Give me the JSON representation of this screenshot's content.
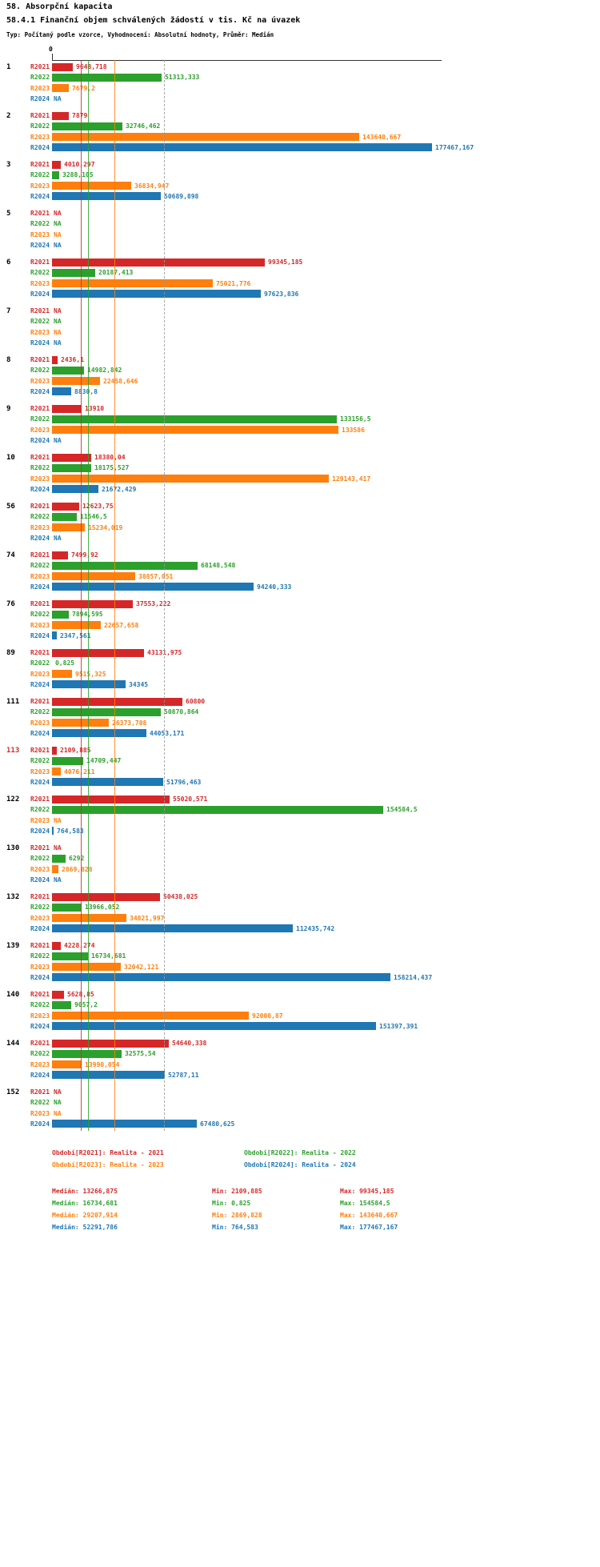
{
  "title": "58. Absorpční kapacita",
  "subtitle": "58.4.1 Finanční objem schválených žádostí v tis. Kč na úvazek",
  "meta_line": "Typ: Počítaný podle vzorce, Vyhodnocení: Absolutní hodnoty, Průměr: Medián",
  "axis": {
    "zero_label": "0",
    "axis_min": 0
  },
  "chart_data": {
    "type": "bar",
    "orientation": "horizontal",
    "title": "58.4.1 Finanční objem schválených žádostí v tis. Kč na úvazek",
    "axis_max": 177467.167,
    "series": [
      "R2021",
      "R2022",
      "R2023",
      "R2024"
    ],
    "colors": {
      "R2021": "#d62728",
      "R2022": "#2ca02c",
      "R2023": "#ff7f0e",
      "R2024": "#1f77b4"
    },
    "median_lines": {
      "R2021": 13266.875,
      "R2022": 16734.681,
      "R2023": 29207.914,
      "R2024": 52291.786
    },
    "na_label": "NA",
    "groups": [
      {
        "id": "1",
        "highlight": false,
        "values": {
          "R2021": "9648,718",
          "R2022": "51313,333",
          "R2023": "7679,2",
          "R2024": "NA"
        }
      },
      {
        "id": "2",
        "highlight": false,
        "values": {
          "R2021": "7879",
          "R2022": "32746,462",
          "R2023": "143640,667",
          "R2024": "177467,167"
        }
      },
      {
        "id": "3",
        "highlight": false,
        "values": {
          "R2021": "4010,297",
          "R2022": "3288,105",
          "R2023": "36834,947",
          "R2024": "50689,898"
        }
      },
      {
        "id": "5",
        "highlight": false,
        "values": {
          "R2021": "NA",
          "R2022": "NA",
          "R2023": "NA",
          "R2024": "NA"
        }
      },
      {
        "id": "6",
        "highlight": false,
        "values": {
          "R2021": "99345,185",
          "R2022": "20187,413",
          "R2023": "75021,776",
          "R2024": "97623,836"
        }
      },
      {
        "id": "7",
        "highlight": false,
        "values": {
          "R2021": "NA",
          "R2022": "NA",
          "R2023": "NA",
          "R2024": "NA"
        }
      },
      {
        "id": "8",
        "highlight": false,
        "values": {
          "R2021": "2436,1",
          "R2022": "14982,842",
          "R2023": "22458,646",
          "R2024": "8830,8"
        }
      },
      {
        "id": "9",
        "highlight": false,
        "values": {
          "R2021": "13910",
          "R2022": "133156,5",
          "R2023": "133586",
          "R2024": "NA"
        }
      },
      {
        "id": "10",
        "highlight": false,
        "values": {
          "R2021": "18380,04",
          "R2022": "18175,527",
          "R2023": "129143,417",
          "R2024": "21672,429"
        }
      },
      {
        "id": "56",
        "highlight": false,
        "values": {
          "R2021": "12623,75",
          "R2022": "11546,5",
          "R2023": "15234,019",
          "R2024": "NA"
        }
      },
      {
        "id": "74",
        "highlight": false,
        "values": {
          "R2021": "7499,92",
          "R2022": "68148,548",
          "R2023": "38857,051",
          "R2024": "94240,333"
        }
      },
      {
        "id": "76",
        "highlight": false,
        "values": {
          "R2021": "37553,222",
          "R2022": "7894,595",
          "R2023": "22657,658",
          "R2024": "2347,561"
        }
      },
      {
        "id": "89",
        "highlight": false,
        "values": {
          "R2021": "43131,975",
          "R2022": "0,825",
          "R2023": "9515,325",
          "R2024": "34345"
        }
      },
      {
        "id": "111",
        "highlight": false,
        "values": {
          "R2021": "60800",
          "R2022": "50870,864",
          "R2023": "26373,708",
          "R2024": "44053,171"
        }
      },
      {
        "id": "113",
        "highlight": true,
        "values": {
          "R2021": "2109,885",
          "R2022": "14709,447",
          "R2023": "4076,211",
          "R2024": "51796,463"
        }
      },
      {
        "id": "122",
        "highlight": false,
        "values": {
          "R2021": "55020,571",
          "R2022": "154584,5",
          "R2023": "NA",
          "R2024": "764,583"
        }
      },
      {
        "id": "130",
        "highlight": false,
        "values": {
          "R2021": "NA",
          "R2022": "6292",
          "R2023": "2869,828",
          "R2024": "NA"
        }
      },
      {
        "id": "132",
        "highlight": false,
        "values": {
          "R2021": "50438,025",
          "R2022": "13966,052",
          "R2023": "34821,997",
          "R2024": "112435,742"
        }
      },
      {
        "id": "139",
        "highlight": false,
        "values": {
          "R2021": "4228,274",
          "R2022": "16734,681",
          "R2023": "32042,121",
          "R2024": "158214,437"
        }
      },
      {
        "id": "140",
        "highlight": false,
        "values": {
          "R2021": "5628,85",
          "R2022": "9057,2",
          "R2023": "92008,87",
          "R2024": "151397,391"
        }
      },
      {
        "id": "144",
        "highlight": false,
        "values": {
          "R2021": "54640,338",
          "R2022": "32575,54",
          "R2023": "13990,054",
          "R2024": "52787,11"
        }
      },
      {
        "id": "152",
        "highlight": false,
        "values": {
          "R2021": "NA",
          "R2022": "NA",
          "R2023": "NA",
          "R2024": "67480,625"
        }
      }
    ]
  },
  "legend": [
    {
      "series": "R2021",
      "label": "Období[R2021]: Realita - 2021"
    },
    {
      "series": "R2022",
      "label": "Období[R2022]: Realita - 2022"
    },
    {
      "series": "R2023",
      "label": "Období[R2023]: Realita - 2023"
    },
    {
      "series": "R2024",
      "label": "Období[R2024]: Realita - 2024"
    }
  ],
  "stats": {
    "median_label": "Medián",
    "min_label": "Min",
    "max_label": "Max",
    "rows": [
      {
        "series": "R2021",
        "median": "13266,875",
        "min": "2109,885",
        "max": "99345,185"
      },
      {
        "series": "R2022",
        "median": "16734,681",
        "min": "0,825",
        "max": "154584,5"
      },
      {
        "series": "R2023",
        "median": "29207,914",
        "min": "2869,828",
        "max": "143640,667"
      },
      {
        "series": "R2024",
        "median": "52291,786",
        "min": "764,583",
        "max": "177467,167"
      }
    ]
  }
}
